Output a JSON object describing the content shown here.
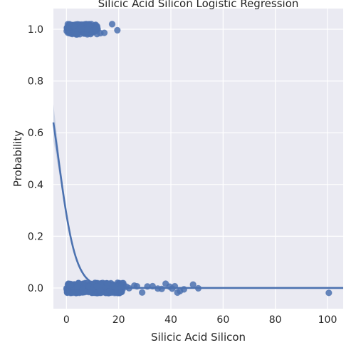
{
  "chart_data": {
    "type": "scatter",
    "title": "Silicic Acid Silicon Logistic Regression",
    "xlabel": "Silicic Acid Silicon",
    "ylabel": "Probability",
    "xlim": [
      -5,
      106
    ],
    "ylim": [
      -0.08,
      1.08
    ],
    "x_ticks": [
      0,
      20,
      40,
      60,
      80,
      100
    ],
    "y_ticks": [
      0.0,
      0.2,
      0.4,
      0.6,
      0.8,
      1.0
    ],
    "grid": true,
    "background": "#eaeaf2",
    "series": [
      {
        "kind": "points",
        "color": "#4c72b0",
        "points_y1": {
          "dense_x_range": [
            0,
            12
          ],
          "jitter_y": 0.02,
          "outliers_x": [
            13,
            14.5,
            17.5,
            19.5
          ]
        },
        "points_y0": {
          "dense_x_range": [
            0,
            22
          ],
          "jitter_y": 0.02,
          "outliers_x": [
            23,
            24,
            26,
            27,
            29,
            31,
            33,
            35,
            36.5,
            38,
            39.5,
            40.5,
            41.5,
            42.5,
            43.5,
            45,
            48.5,
            50.5,
            100.5
          ]
        }
      },
      {
        "kind": "fit",
        "color": "#4c72b0",
        "logistic": {
          "intercept": -0.925,
          "slope": -0.3
        }
      }
    ]
  }
}
